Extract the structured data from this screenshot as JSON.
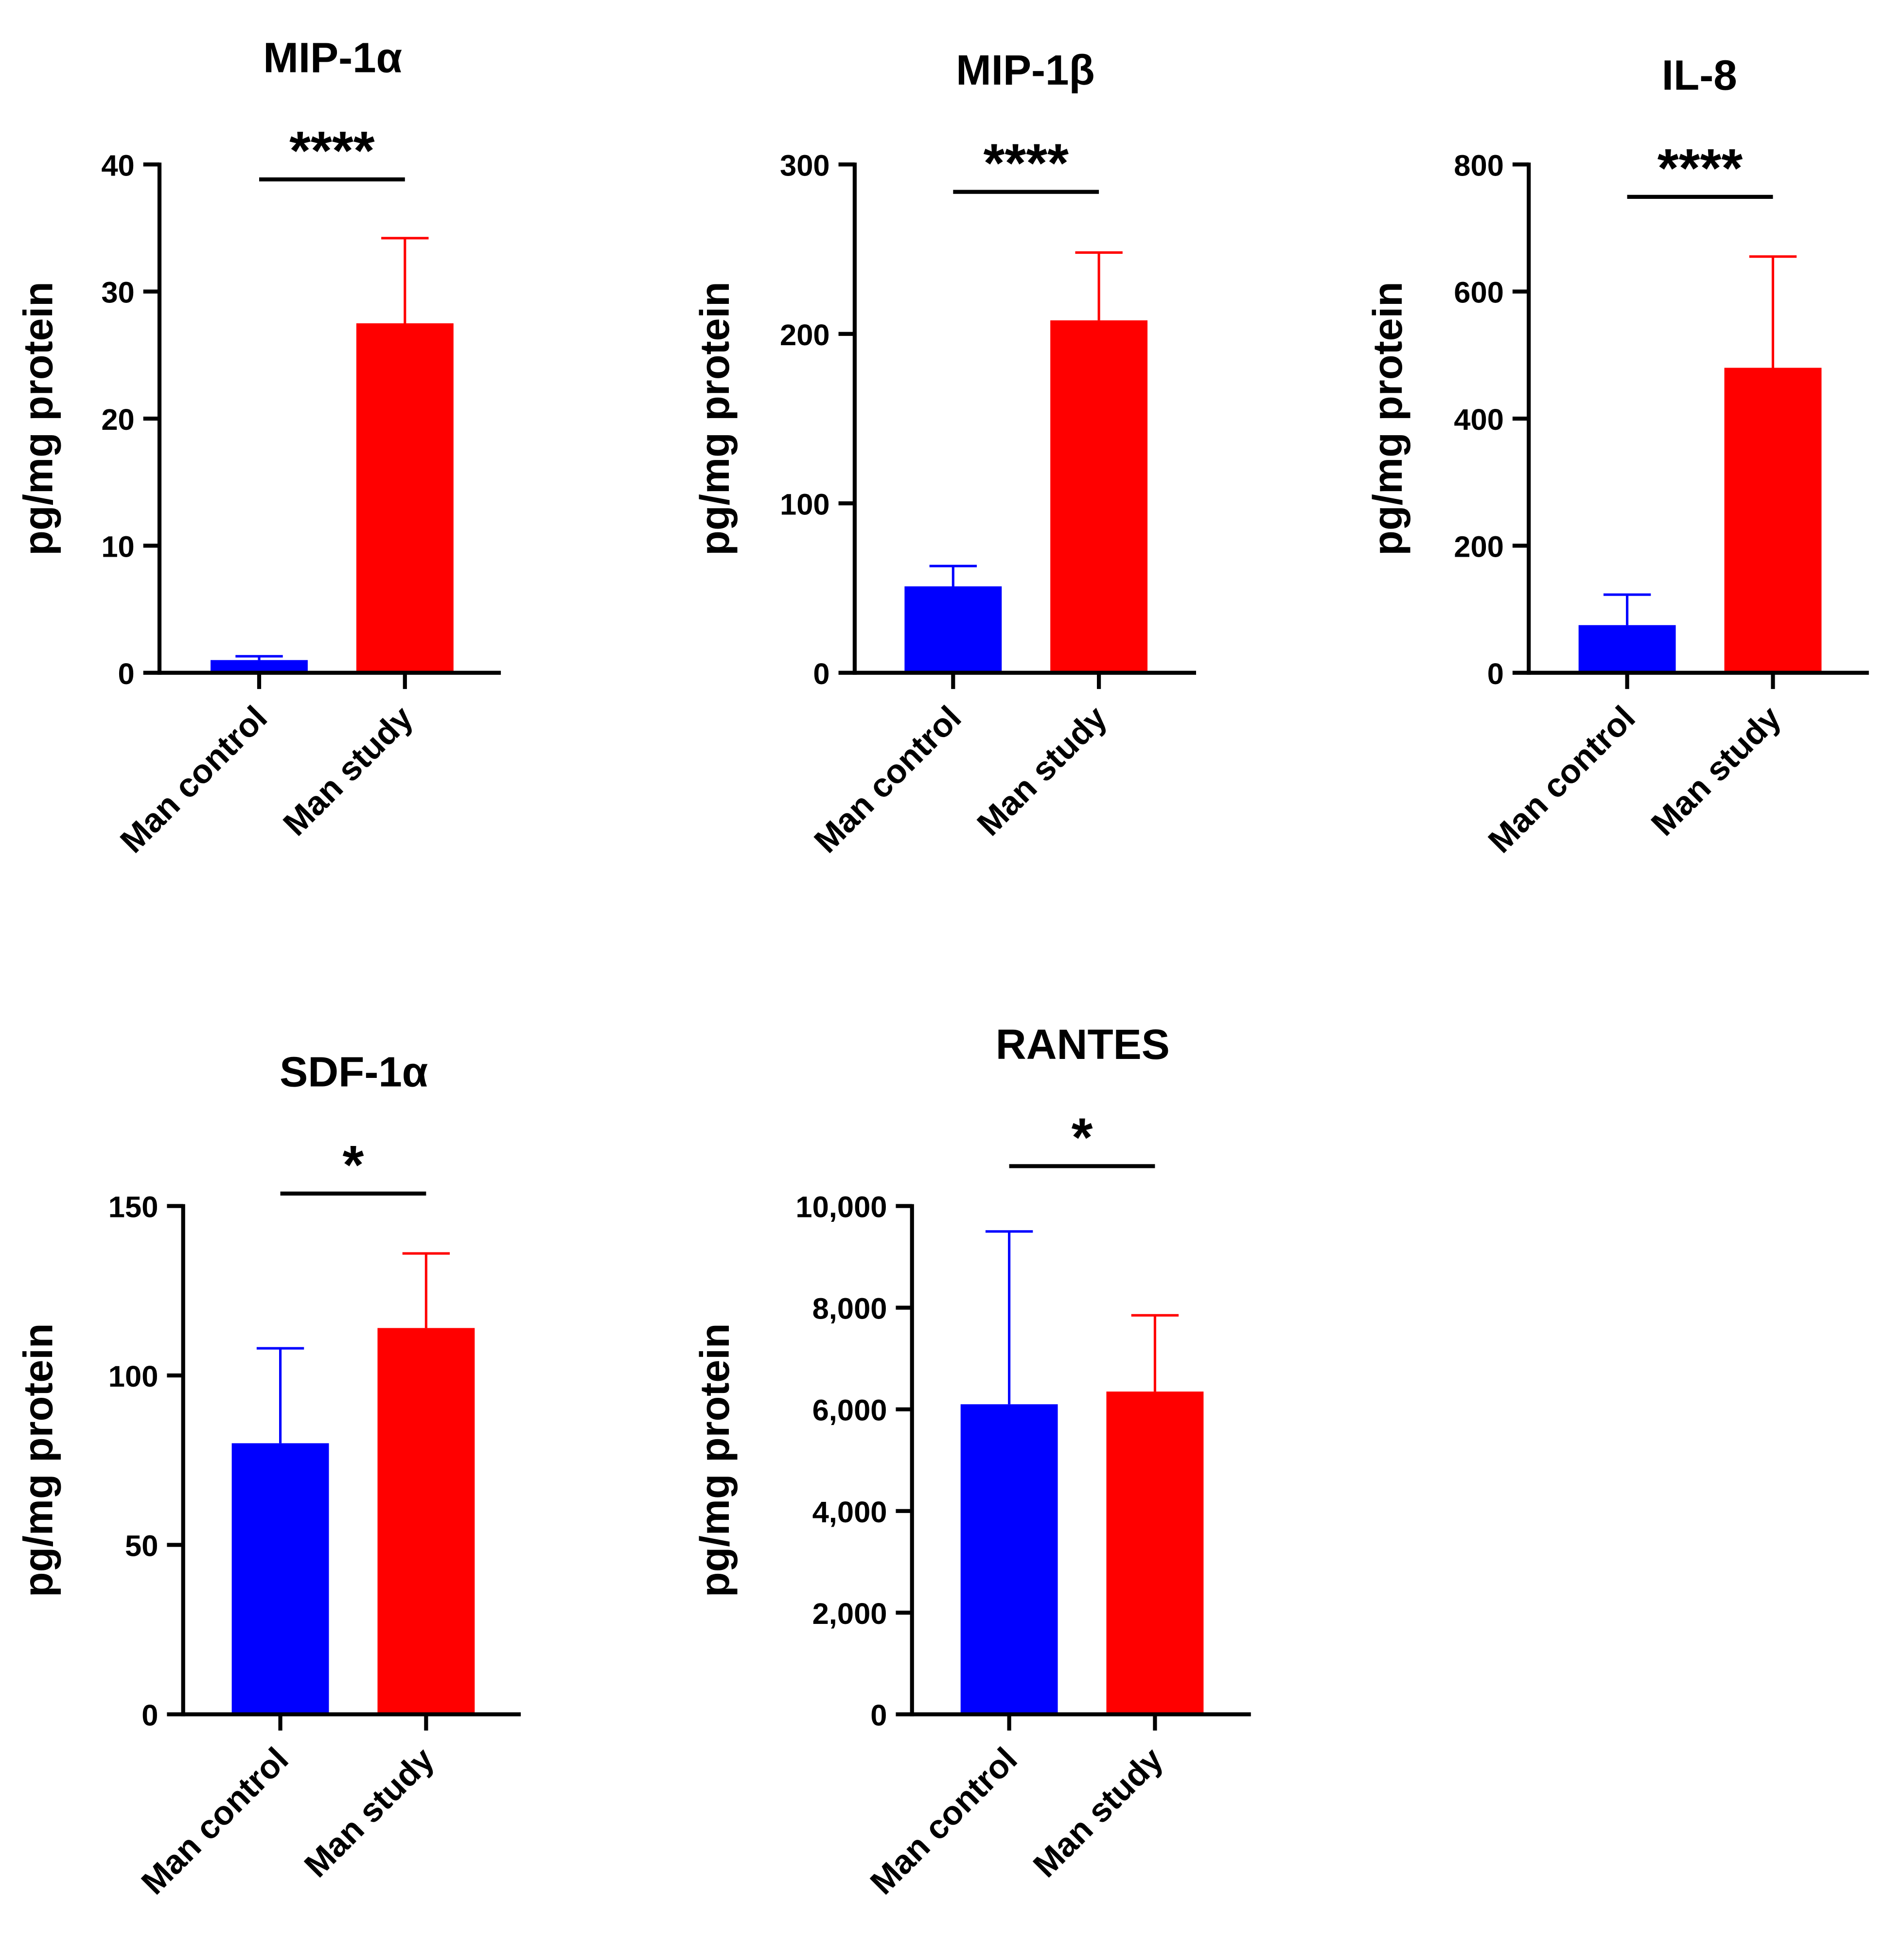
{
  "chart_data": [
    {
      "type": "bar",
      "title": "MIP-1α",
      "ylabel": "pg/mg protein",
      "xlabel": "",
      "categories": [
        "Man control",
        "Man study"
      ],
      "values": [
        1.0,
        27.5
      ],
      "errors": [
        0.3,
        6.7
      ],
      "colors": [
        "#0000ff",
        "#ff0000"
      ],
      "ylim": [
        0,
        40
      ],
      "yticks": [
        0,
        10,
        20,
        30,
        40
      ],
      "ytick_labels": [
        "0",
        "10",
        "20",
        "30",
        "40"
      ],
      "significance": "****",
      "significance_y": 38.9
    },
    {
      "type": "bar",
      "title": "MIP-1β",
      "ylabel": "pg/mg protein",
      "xlabel": "",
      "categories": [
        "Man control",
        "Man study"
      ],
      "values": [
        51,
        208
      ],
      "errors": [
        12,
        40
      ],
      "colors": [
        "#0000ff",
        "#ff0000"
      ],
      "ylim": [
        0,
        300
      ],
      "yticks": [
        0,
        100,
        200,
        300
      ],
      "ytick_labels": [
        "0",
        "100",
        "200",
        "300"
      ],
      "significance": "****",
      "significance_y": 284
    },
    {
      "type": "bar",
      "title": "IL-8",
      "ylabel": "pg/mg protein",
      "xlabel": "",
      "categories": [
        "Man control",
        "Man study"
      ],
      "values": [
        75,
        480
      ],
      "errors": [
        48,
        175
      ],
      "colors": [
        "#0000ff",
        "#ff0000"
      ],
      "ylim": [
        0,
        800
      ],
      "yticks": [
        0,
        200,
        400,
        600,
        800
      ],
      "ytick_labels": [
        "0",
        "200",
        "400",
        "600",
        "800"
      ],
      "significance": "****",
      "significance_y": 753
    },
    {
      "type": "bar",
      "title": "SDF-1α",
      "ylabel": "pg/mg protein",
      "xlabel": "",
      "categories": [
        "Man control",
        "Man study"
      ],
      "values": [
        80,
        114
      ],
      "errors": [
        28,
        22
      ],
      "colors": [
        "#0000ff",
        "#ff0000"
      ],
      "ylim": [
        0,
        150
      ],
      "yticks": [
        0,
        50,
        100,
        150
      ],
      "ytick_labels": [
        "0",
        "50",
        "100",
        "150"
      ],
      "significance": "*",
      "significance_y": 153
    },
    {
      "type": "bar",
      "title": "RANTES",
      "ylabel": "pg/mg protein",
      "xlabel": "",
      "categories": [
        "Man control",
        "Man study"
      ],
      "values": [
        6100,
        6350
      ],
      "errors": [
        3400,
        1500
      ],
      "colors": [
        "#0000ff",
        "#ff0000"
      ],
      "ylim": [
        0,
        10000
      ],
      "yticks": [
        0,
        2000,
        4000,
        6000,
        8000,
        10000
      ],
      "ytick_labels": [
        "0",
        "2,000",
        "4,000",
        "6,000",
        "8,000",
        "10,000"
      ],
      "significance": "*",
      "significance_y": 10800
    }
  ]
}
